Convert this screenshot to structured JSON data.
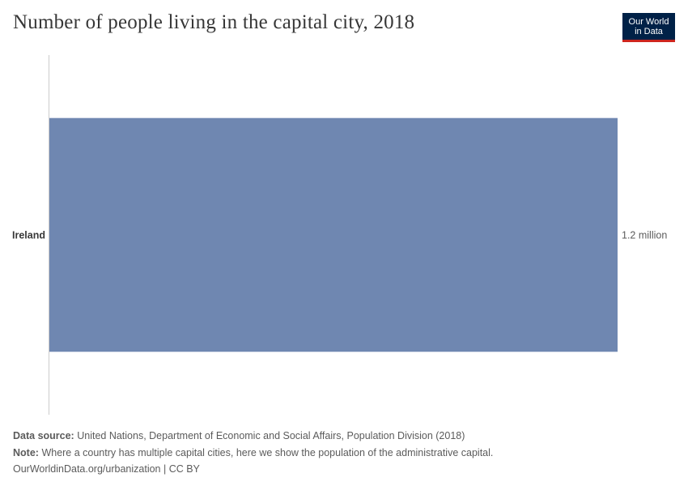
{
  "header": {
    "title": "Number of people living in the capital city, 2018"
  },
  "logo": {
    "line1": "Our World",
    "line2": "in Data"
  },
  "chart_data": {
    "type": "bar",
    "orientation": "horizontal",
    "categories": [
      "Ireland"
    ],
    "values": [
      1200000
    ],
    "value_labels": [
      "1.2 million"
    ],
    "xlim": [
      0,
      1200000
    ],
    "bar_color": "#6f87b1"
  },
  "footer": {
    "source_label": "Data source:",
    "source_text": "United Nations, Department of Economic and Social Affairs, Population Division (2018)",
    "note_label": "Note:",
    "note_text": "Where a country has multiple capital cities, here we show the population of the administrative capital.",
    "url_text": "OurWorldinData.org/urbanization | CC BY"
  }
}
